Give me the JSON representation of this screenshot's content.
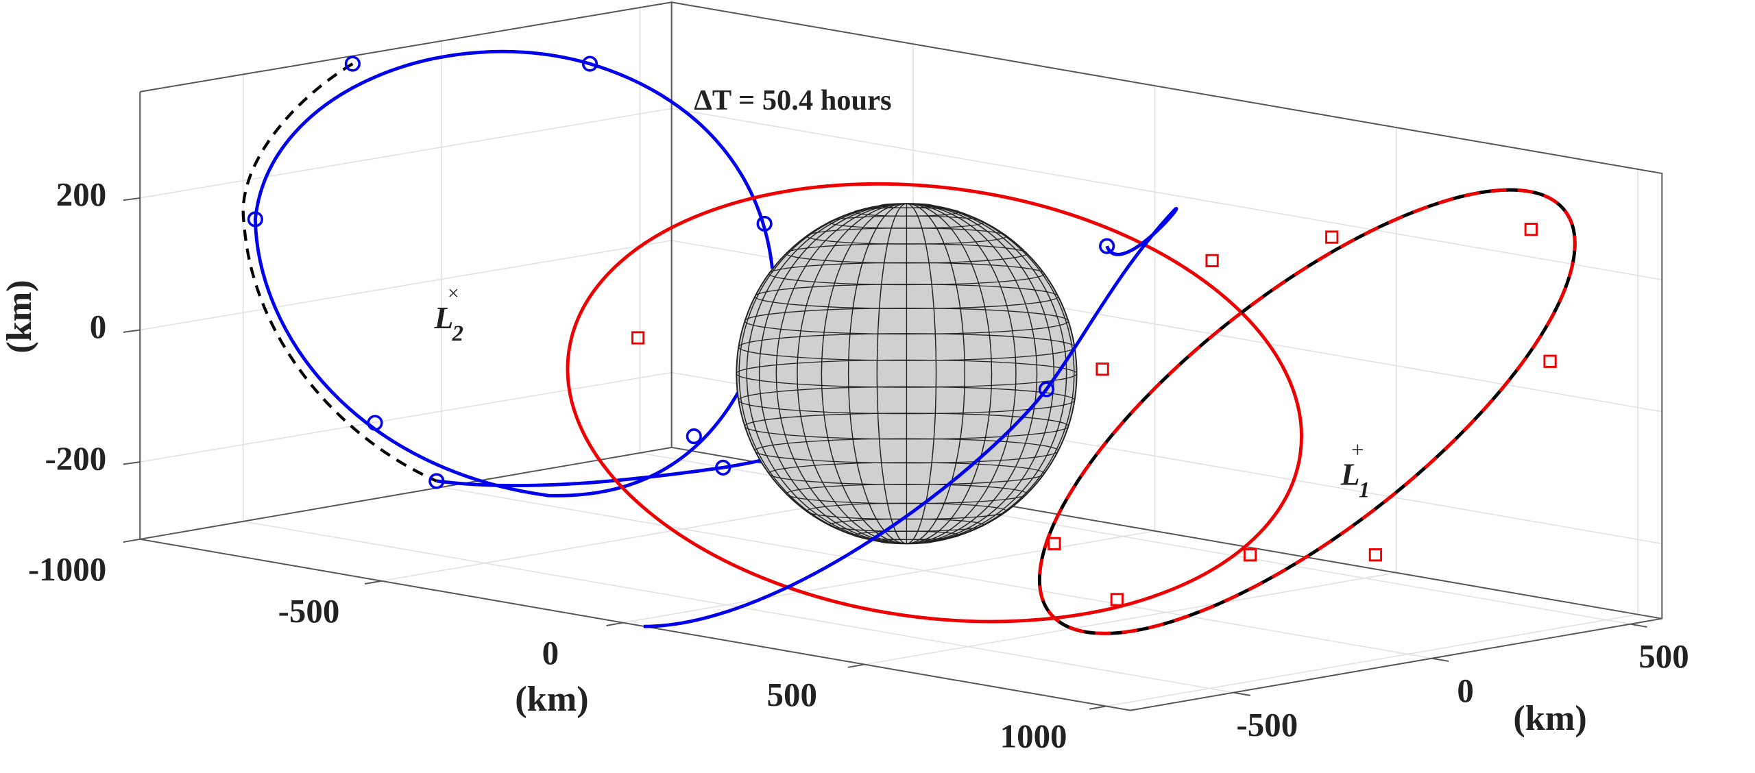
{
  "chart_data": {
    "type": "line3d",
    "annotation": "ΔT = 50.4 hours",
    "points": [
      {
        "label": "L",
        "subscript": "2",
        "marker": "×"
      },
      {
        "label": "L",
        "subscript": "1",
        "marker": "+"
      }
    ],
    "xlabel": "(km)",
    "ylabel": "(km)",
    "zlabel": "(km)",
    "xlim": [
      -1000,
      1050
    ],
    "xticks": [
      -1000,
      -500,
      0,
      500,
      1000
    ],
    "ylim": [
      -760,
      580
    ],
    "yticks": [
      -500,
      0,
      500
    ],
    "zlim": [
      -317,
      361
    ],
    "zticks": [
      -200,
      0,
      200
    ],
    "grid": true
  }
}
